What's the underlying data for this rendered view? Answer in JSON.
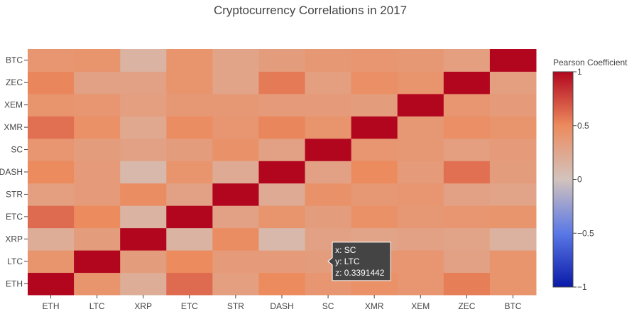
{
  "chart_data": {
    "type": "heatmap",
    "title": "Cryptocurrency Correlations in 2017",
    "x_labels": [
      "ETH",
      "LTC",
      "XRP",
      "ETC",
      "STR",
      "DASH",
      "SC",
      "XMR",
      "XEM",
      "ZEC",
      "BTC"
    ],
    "y_labels": [
      "ETH",
      "LTC",
      "XRP",
      "ETC",
      "STR",
      "DASH",
      "SC",
      "XMR",
      "XEM",
      "ZEC",
      "BTC"
    ],
    "z": [
      [
        1.0,
        0.42,
        0.2,
        0.62,
        0.32,
        0.5,
        0.4,
        0.45,
        0.4,
        0.55,
        0.42
      ],
      [
        0.42,
        1.0,
        0.34,
        0.5,
        0.36,
        0.36,
        0.34,
        0.4,
        0.4,
        0.3,
        0.42
      ],
      [
        0.2,
        0.34,
        1.0,
        0.14,
        0.48,
        0.1,
        0.3,
        0.28,
        0.3,
        0.28,
        0.16
      ],
      [
        0.62,
        0.5,
        0.14,
        1.0,
        0.3,
        0.42,
        0.34,
        0.45,
        0.38,
        0.4,
        0.42
      ],
      [
        0.32,
        0.36,
        0.48,
        0.3,
        1.0,
        0.22,
        0.44,
        0.38,
        0.4,
        0.3,
        0.28
      ],
      [
        0.5,
        0.36,
        0.1,
        0.42,
        0.22,
        1.0,
        0.3,
        0.5,
        0.36,
        0.6,
        0.34
      ],
      [
        0.4,
        0.34,
        0.3,
        0.34,
        0.44,
        0.3,
        1.0,
        0.4,
        0.38,
        0.32,
        0.36
      ],
      [
        0.6,
        0.45,
        0.24,
        0.48,
        0.4,
        0.52,
        0.42,
        1.0,
        0.38,
        0.46,
        0.42
      ],
      [
        0.42,
        0.4,
        0.32,
        0.38,
        0.38,
        0.36,
        0.36,
        0.34,
        1.0,
        0.4,
        0.36
      ],
      [
        0.52,
        0.3,
        0.3,
        0.42,
        0.28,
        0.56,
        0.32,
        0.46,
        0.42,
        1.0,
        0.32
      ],
      [
        0.4,
        0.42,
        0.14,
        0.42,
        0.28,
        0.34,
        0.38,
        0.4,
        0.38,
        0.32,
        1.0
      ]
    ],
    "zmin": -1,
    "zmax": 1,
    "colorscale": [
      [
        0.0,
        "#0a1aa8"
      ],
      [
        0.25,
        "#5a78e6"
      ],
      [
        0.5,
        "#d3c3bd"
      ],
      [
        0.75,
        "#ec8b5e"
      ],
      [
        1.0,
        "#b2061f"
      ]
    ],
    "colorbar": {
      "title": "Pearson Coefficient",
      "tickvals": [
        1,
        0.5,
        0,
        -0.5,
        -1
      ],
      "ticktext": [
        "1",
        "0.5",
        "0",
        "−0.5",
        "−1"
      ]
    },
    "hover": {
      "x": "SC",
      "y": "LTC",
      "z": "0.3391442",
      "lines": [
        "x: SC",
        "y: LTC",
        "z: 0.3391442"
      ],
      "bg": "#444444"
    }
  }
}
